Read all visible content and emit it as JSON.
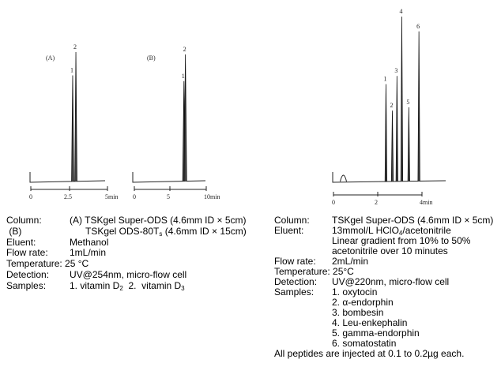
{
  "chart_data": [
    {
      "type": "line",
      "panel_label": "(A)",
      "x_ticks": [
        "0",
        "2.5",
        "5min"
      ],
      "xlim": [
        0,
        5
      ],
      "peaks": [
        {
          "label": "1",
          "time": 2.73,
          "relative_height": 82
        },
        {
          "label": "2",
          "time": 2.94,
          "relative_height": 100
        }
      ]
    },
    {
      "type": "line",
      "panel_label": "(B)",
      "x_ticks": [
        "0",
        "5",
        "10min"
      ],
      "xlim": [
        0,
        10
      ],
      "peaks": [
        {
          "label": "1",
          "time": 6.9,
          "relative_height": 79
        },
        {
          "label": "2",
          "time": 7.1,
          "relative_height": 100
        }
      ]
    },
    {
      "type": "line",
      "x_ticks": [
        "0",
        "2",
        "4min"
      ],
      "xlim": [
        0,
        5
      ],
      "peaks": [
        {
          "label": "1",
          "time": 2.39,
          "relative_height": 59
        },
        {
          "label": "2",
          "time": 2.68,
          "relative_height": 43
        },
        {
          "label": "3",
          "time": 2.89,
          "relative_height": 64
        },
        {
          "label": "4",
          "time": 3.11,
          "relative_height": 100
        },
        {
          "label": "5",
          "time": 3.43,
          "relative_height": 45
        },
        {
          "label": "6",
          "time": 3.89,
          "relative_height": 91
        }
      ]
    }
  ],
  "left_conditions": {
    "column_label": "Column:",
    "column_a": "(A) TSKgel Super-ODS (4.6mm ID × 5cm)",
    "column_b_label": " (B)",
    "column_b_pre": "TSKgel ODS-80T",
    "column_b_sub": "s",
    "column_b_post": " (4.6mm ID × 15cm)",
    "eluent_label": "Eluent:",
    "eluent": "Methanol",
    "flow_label": "Flow rate:",
    "flow": "1mL/min",
    "temperature": "Temperature: 25 °C",
    "detection_label": "Detection:",
    "detection": "UV@254nm, micro-flow cell",
    "samples_label": "Samples:",
    "sample1_pre": "1. vitamin D",
    "sample1_sub": "2",
    "sample2_pre": "  2.  vitamin D",
    "sample2_sub": "3"
  },
  "right_conditions": {
    "column_label": "Column:",
    "column": "TSKgel Super-ODS (4.6mm ID × 5cm)",
    "eluent_label": "Eluent:",
    "eluent_pre": "13mmol/L HClO",
    "eluent_sub": "4",
    "eluent_post": "/acetonitrile",
    "gradient_1": "Linear gradient from 10% to 50%",
    "gradient_2": "acetonitrile over 10 minutes",
    "flow_label": "Flow rate:",
    "flow": "2mL/min",
    "temperature": "Temperature: 25°C",
    "detection_label": "Detection:",
    "detection": "UV@220nm, micro-flow cell",
    "samples_label": "Samples:",
    "samples": [
      "1. oxytocin",
      "2. α-endorphin",
      "3. bombesin",
      "4. Leu-enkephalin",
      "5. gamma-endorphin",
      "6. somatostatin"
    ],
    "note": "All peptides are injected at 0.1 to 0.2µg each."
  }
}
